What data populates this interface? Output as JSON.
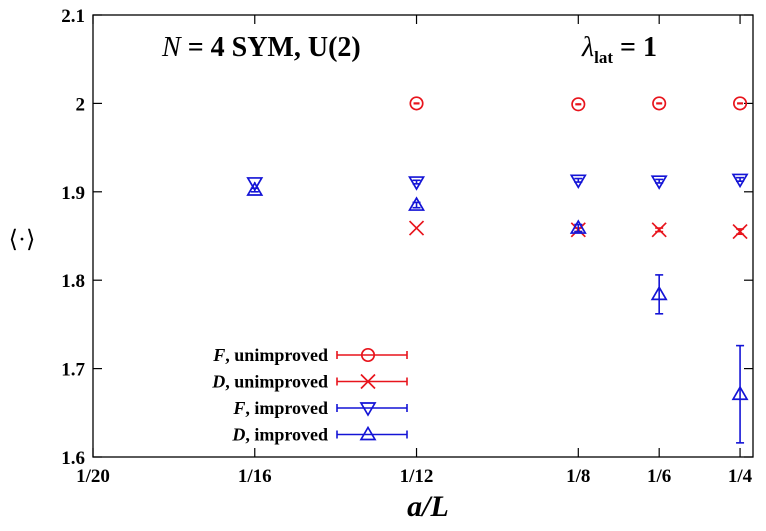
{
  "chart_data": {
    "type": "scatter",
    "title_left": "N = 4 SYM, U(2)",
    "title_left_prefix": "N",
    "title_left_rest": " = 4 SYM, U(2)",
    "title_right_lambda": "λ",
    "title_right_sub": "lat",
    "title_right_rest": " = 1",
    "xlabel": "a/L",
    "ylabel": "⟨·⟩",
    "x_tick_labels": [
      "1/20",
      "1/16",
      "1/12",
      "1/8",
      "1/6",
      "1/4"
    ],
    "x_tick_values": [
      0.05,
      0.0625,
      0.083333,
      0.125,
      0.166667,
      0.25
    ],
    "x_scale": "reciprocal",
    "y_ticks": [
      1.6,
      1.7,
      1.8,
      1.9,
      2,
      2.1
    ],
    "y_tick_labels": [
      "1.6",
      "1.7",
      "1.8",
      "1.9",
      "2",
      "2.1"
    ],
    "ylim": [
      1.6,
      2.1
    ],
    "grid": false,
    "legend_position": "bottom-left",
    "series": [
      {
        "name_italic": "F",
        "name_rest": ", unimproved",
        "marker": "circle",
        "color": "#e8141c",
        "points": [
          {
            "x": "1/12",
            "y": 2.0,
            "err": 0.001
          },
          {
            "x": "1/8",
            "y": 1.999,
            "err": 0.001
          },
          {
            "x": "1/6",
            "y": 2.0,
            "err": 0.001
          },
          {
            "x": "1/4",
            "y": 2.0,
            "err": 0.001
          }
        ]
      },
      {
        "name_italic": "D",
        "name_rest": ", unimproved",
        "marker": "x",
        "color": "#e8141c",
        "points": [
          {
            "x": "1/12",
            "y": 1.859,
            "err": 0.001
          },
          {
            "x": "1/8",
            "y": 1.857,
            "err": 0.002
          },
          {
            "x": "1/6",
            "y": 1.857,
            "err": 0.002
          },
          {
            "x": "1/4",
            "y": 1.855,
            "err": 0.003
          }
        ]
      },
      {
        "name_italic": "F",
        "name_rest": ", improved",
        "marker": "triangle-down",
        "color": "#1414d6",
        "points": [
          {
            "x": "1/16",
            "y": 1.91,
            "err": 0.001
          },
          {
            "x": "1/12",
            "y": 1.911,
            "err": 0.002
          },
          {
            "x": "1/8",
            "y": 1.913,
            "err": 0.002
          },
          {
            "x": "1/6",
            "y": 1.912,
            "err": 0.002
          },
          {
            "x": "1/4",
            "y": 1.914,
            "err": 0.002
          }
        ]
      },
      {
        "name_italic": "D",
        "name_rest": ", improved",
        "marker": "triangle-up",
        "color": "#1414d6",
        "points": [
          {
            "x": "1/16",
            "y": 1.902,
            "err": 0.002
          },
          {
            "x": "1/12",
            "y": 1.885,
            "err": 0.003
          },
          {
            "x": "1/8",
            "y": 1.859,
            "err": 0.004
          },
          {
            "x": "1/6",
            "y": 1.784,
            "err": 0.022
          },
          {
            "x": "1/4",
            "y": 1.671,
            "err": 0.055
          }
        ]
      }
    ]
  }
}
